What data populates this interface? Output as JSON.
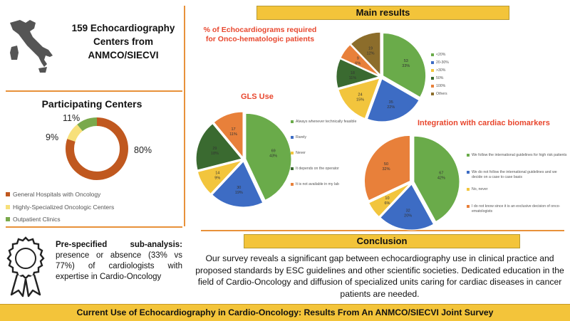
{
  "centers": {
    "title_line1": "159 Echocardiography",
    "title_line2": "Centers from",
    "title_line3": "ANMCO/SIECVI"
  },
  "participating": {
    "title": "Participating Centers",
    "slices": [
      {
        "label": "General Hospitals with Oncology",
        "pct_label": "80%",
        "value": 80,
        "color": "#c0581f"
      },
      {
        "label": "Highly-Specialized Oncologic Centers",
        "pct_label": "9%",
        "value": 9,
        "color": "#f7e07a"
      },
      {
        "label": "Outpatient Clinics",
        "pct_label": "11%",
        "value": 11,
        "color": "#7aa94c"
      }
    ]
  },
  "subanalysis": {
    "bold": "Pre-specified sub-analysis:",
    "rest": " presence or absence (33% vs 77%) of cardiologists with expertise in Cardio-Oncology"
  },
  "main_results": {
    "title": "Main results"
  },
  "charts": {
    "echo": {
      "title_line1": "% of Echocardiograms required",
      "title_line2": "for Onco-hematologic patients",
      "slices": [
        {
          "label": "<20%",
          "count": "53",
          "pct": "33%",
          "value": 33,
          "color": "#6aab4a"
        },
        {
          "label": "20-30%",
          "count": "35",
          "pct": "22%",
          "value": 22,
          "color": "#3d6cc4"
        },
        {
          "label": ">30%",
          "count": "24",
          "pct": "15%",
          "value": 15,
          "color": "#f2c53d"
        },
        {
          "label": "50%",
          "count": "18",
          "pct": "11%",
          "value": 11,
          "color": "#3a6a30"
        },
        {
          "label": "100%",
          "count": "9",
          "pct": "6%",
          "value": 6,
          "color": "#e8803a"
        },
        {
          "label": "Others",
          "count": "19",
          "pct": "12%",
          "value": 12,
          "color": "#8c6d2b"
        }
      ]
    },
    "gls": {
      "title": "GLS Use",
      "slices": [
        {
          "label": "Always whenever technically feasible",
          "count": "69",
          "pct": "43%",
          "value": 43,
          "color": "#6aab4a"
        },
        {
          "label": "Rarely",
          "count": "30",
          "pct": "19%",
          "value": 19,
          "color": "#3d6cc4"
        },
        {
          "label": "Never",
          "count": "14",
          "pct": "9%",
          "value": 9,
          "color": "#f2c53d"
        },
        {
          "label": "It depends on the operator",
          "count": "29",
          "pct": "18%",
          "value": 18,
          "color": "#3a6a30"
        },
        {
          "label": "It is not available in my lab",
          "count": "17",
          "pct": "11%",
          "value": 11,
          "color": "#e8803a"
        }
      ]
    },
    "bio": {
      "title": "Integration with cardiac biomarkers",
      "slices": [
        {
          "label": "We follow the international guidelines for high risk patients",
          "count": "67",
          "pct": "42%",
          "value": 42,
          "color": "#6aab4a"
        },
        {
          "label": "We do not follow the international guidelines and we decide on a case to case basis",
          "count": "32",
          "pct": "20%",
          "value": 20,
          "color": "#3d6cc4"
        },
        {
          "label": "No, never",
          "count": "10",
          "pct": "6%",
          "value": 6,
          "color": "#f2c53d"
        },
        {
          "label": "I do not know since it is an exclusive decision of onco-ematologists",
          "count": "50",
          "pct": "32%",
          "value": 32,
          "color": "#e8803a"
        }
      ]
    }
  },
  "conclusion": {
    "title": "Conclusion",
    "text": "Our survey reveals a significant gap between echocardiography use in clinical practice and proposed standards by ESC guidelines and other scientific societies. Dedicated education in the field of Cardio-Oncology and diffusion of specialized units caring for cardiac diseases in cancer patients are needed."
  },
  "footer": {
    "title": "Current Use of Echocardiography in Cardio-Oncology: Results From An ANMCO/SIECVI Joint Survey"
  }
}
